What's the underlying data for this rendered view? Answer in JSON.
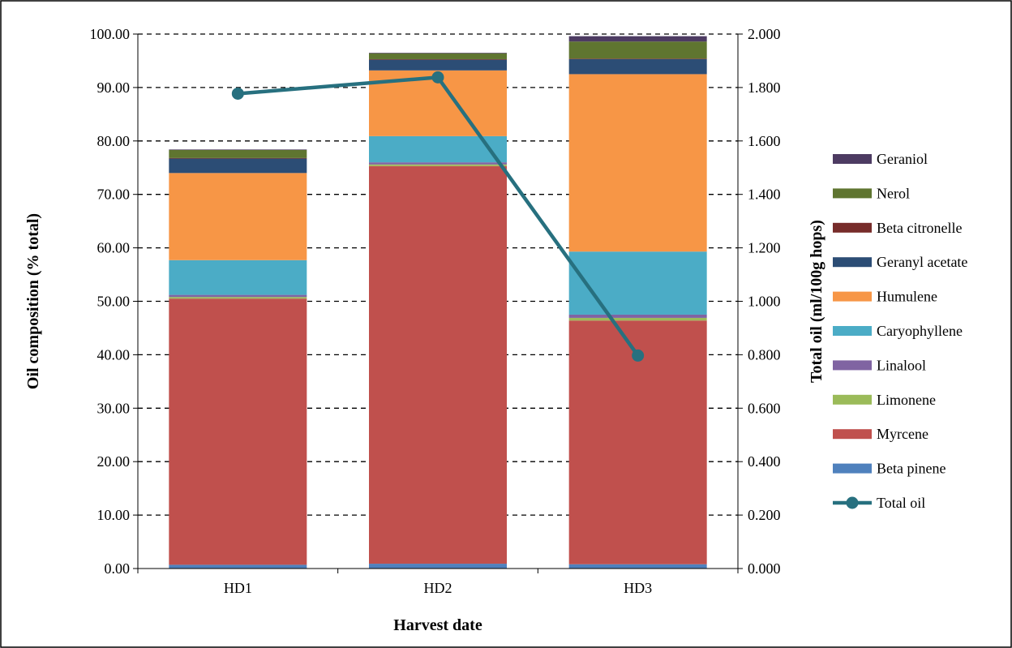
{
  "chart_data": {
    "type": "bar",
    "stacked": true,
    "categories": [
      "HD1",
      "HD2",
      "HD3"
    ],
    "xlabel": "Harvest date",
    "ylabel": "Oil composition (% total)",
    "y2label": "Total oil (ml/100g hops)",
    "ylim": [
      0,
      100
    ],
    "y2lim": [
      0,
      2
    ],
    "yticks": [
      "0.00",
      "10.00",
      "20.00",
      "30.00",
      "40.00",
      "50.00",
      "60.00",
      "70.00",
      "80.00",
      "90.00",
      "100.00"
    ],
    "y2ticks": [
      "0.000",
      "0.200",
      "0.400",
      "0.600",
      "0.800",
      "1.000",
      "1.200",
      "1.400",
      "1.600",
      "1.800",
      "2.000"
    ],
    "grid": "horizontal dashed",
    "legend_position": "right",
    "series": [
      {
        "name": "Beta pinene",
        "color": "#4F81BD",
        "values": [
          0.7,
          0.9,
          0.8
        ]
      },
      {
        "name": "Myrcene",
        "color": "#C0504D",
        "values": [
          49.8,
          74.4,
          45.6
        ]
      },
      {
        "name": "Limonene",
        "color": "#9BBB59",
        "values": [
          0.3,
          0.3,
          0.5
        ]
      },
      {
        "name": "Linalool",
        "color": "#8064A2",
        "values": [
          0.4,
          0.4,
          0.6
        ]
      },
      {
        "name": "Caryophyllene",
        "color": "#4BACC6",
        "values": [
          6.5,
          4.9,
          11.8
        ]
      },
      {
        "name": "Humulene",
        "color": "#F79646",
        "values": [
          16.3,
          12.3,
          33.2
        ]
      },
      {
        "name": "Geranyl acetate",
        "color": "#2C4D75",
        "values": [
          2.7,
          2.0,
          2.8
        ]
      },
      {
        "name": "Beta citronelle",
        "color": "#772C2A",
        "values": [
          0.1,
          0.1,
          0.1
        ]
      },
      {
        "name": "Nerol",
        "color": "#5F7530",
        "values": [
          1.5,
          1.1,
          3.2
        ]
      },
      {
        "name": "Geraniol",
        "color": "#4D3B62",
        "values": [
          0.1,
          0.1,
          1.0
        ]
      }
    ],
    "line_series": {
      "name": "Total oil",
      "color": "#27707F",
      "axis": "right",
      "values": [
        1.777,
        1.838,
        0.797
      ]
    }
  }
}
